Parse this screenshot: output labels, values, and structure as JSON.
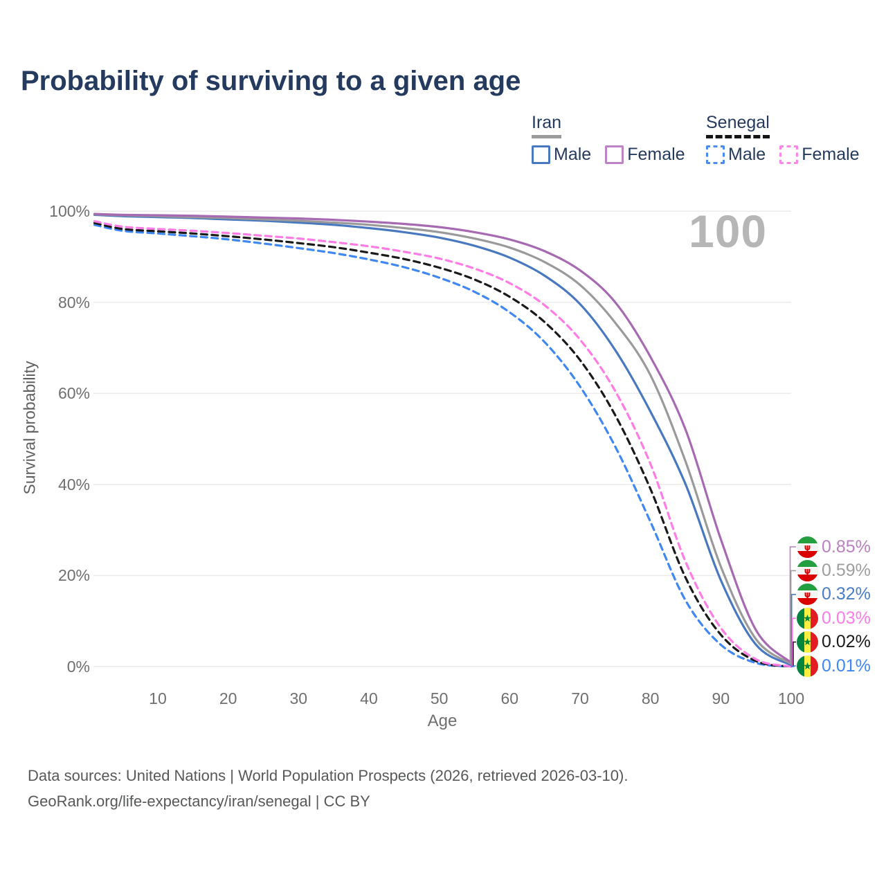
{
  "title": "Probability of surviving to a given age",
  "watermark": "100",
  "legend": {
    "groups": [
      {
        "label": "Iran",
        "line_color": "#9a9a9a",
        "line_style": "solid",
        "items": [
          {
            "label": "Male",
            "color": "#4878c0",
            "style": "solid"
          },
          {
            "label": "Female",
            "color": "#bd84c5",
            "style": "solid"
          }
        ]
      },
      {
        "label": "Senegal",
        "line_color": "#151515",
        "line_style": "dashed",
        "items": [
          {
            "label": "Male",
            "color": "#4a8df0",
            "style": "dashed"
          },
          {
            "label": "Female",
            "color": "#ff85e8",
            "style": "dashed"
          }
        ]
      }
    ]
  },
  "chart_data": {
    "type": "line",
    "title": "Probability of surviving to a given age",
    "xlabel": "Age",
    "ylabel": "Survival probability",
    "x_range": [
      0,
      100
    ],
    "y_range_pct": [
      0,
      100
    ],
    "x_ticks": [
      10,
      20,
      30,
      40,
      50,
      60,
      70,
      80,
      90,
      100
    ],
    "y_ticks": [
      0,
      20,
      40,
      60,
      80,
      100
    ],
    "y_tick_labels": [
      "0%",
      "20%",
      "40%",
      "60%",
      "80%",
      "100%"
    ],
    "grid": "horizontal-only",
    "legend_position": "top-right",
    "x": [
      1,
      5,
      10,
      15,
      20,
      25,
      30,
      35,
      40,
      45,
      50,
      55,
      60,
      65,
      70,
      75,
      80,
      85,
      90,
      95,
      100
    ],
    "series": [
      {
        "id": "iran-female",
        "country": "Iran",
        "sex": "Female",
        "color": "#a669b2",
        "style": "solid",
        "flag": "iran-flag-icon",
        "end_label": "0.85%",
        "label_color": "#bb7fc2",
        "values": [
          99.4,
          99.2,
          99.1,
          99.0,
          98.8,
          98.6,
          98.4,
          98.1,
          97.7,
          97.2,
          96.5,
          95.4,
          93.8,
          91.2,
          87.0,
          80.0,
          68.0,
          52.0,
          28.0,
          8.0,
          0.85
        ]
      },
      {
        "id": "iran-total",
        "country": "Iran",
        "sex": "Both",
        "color": "#9a9a9a",
        "style": "solid",
        "flag": "iran-flag-icon",
        "end_label": "0.59%",
        "label_color": "#9e9e9e",
        "values": [
          99.3,
          99.1,
          98.9,
          98.7,
          98.5,
          98.2,
          97.9,
          97.5,
          97.0,
          96.3,
          95.4,
          94.0,
          92.0,
          88.8,
          83.8,
          75.5,
          64.0,
          45.0,
          22.0,
          6.0,
          0.59
        ]
      },
      {
        "id": "iran-male",
        "country": "Iran",
        "sex": "Male",
        "color": "#4878c0",
        "style": "solid",
        "flag": "iran-flag-icon",
        "end_label": "0.32%",
        "label_color": "#4a7dc9",
        "values": [
          99.2,
          98.9,
          98.7,
          98.5,
          98.2,
          97.9,
          97.5,
          97.0,
          96.3,
          95.4,
          94.2,
          92.4,
          89.8,
          85.8,
          79.6,
          69.5,
          56.0,
          40.0,
          19.0,
          4.8,
          0.32
        ]
      },
      {
        "id": "senegal-female",
        "country": "Senegal",
        "sex": "Female",
        "color": "#ff7ce6",
        "style": "dashed",
        "flag": "senegal-flag-icon",
        "end_label": "0.03%",
        "label_color": "#fb7ce8",
        "values": [
          97.8,
          96.6,
          96.1,
          95.7,
          95.2,
          94.6,
          94.0,
          93.2,
          92.3,
          91.1,
          89.6,
          87.4,
          84.2,
          79.3,
          71.8,
          60.5,
          44.5,
          23.0,
          8.5,
          1.6,
          0.03
        ]
      },
      {
        "id": "senegal-total",
        "country": "Senegal",
        "sex": "Both",
        "color": "#1a1a1a",
        "style": "dashed",
        "flag": "senegal-flag-icon",
        "end_label": "0.02%",
        "label_color": "#1a1a1a",
        "values": [
          97.4,
          96.1,
          95.6,
          95.1,
          94.5,
          93.8,
          93.0,
          92.1,
          90.9,
          89.5,
          87.6,
          85.0,
          81.2,
          75.6,
          67.3,
          55.2,
          39.0,
          19.5,
          7.0,
          1.2,
          0.02
        ]
      },
      {
        "id": "senegal-male",
        "country": "Senegal",
        "sex": "Male",
        "color": "#3f87f2",
        "style": "dashed",
        "flag": "senegal-flag-icon",
        "end_label": "0.01%",
        "label_color": "#3e87f7",
        "values": [
          97.0,
          95.7,
          95.1,
          94.5,
          93.8,
          92.9,
          91.9,
          90.8,
          89.4,
          87.7,
          85.4,
          82.3,
          77.8,
          71.2,
          61.5,
          48.3,
          31.8,
          14.5,
          4.8,
          0.8,
          0.01
        ]
      }
    ]
  },
  "footer": {
    "line1": "Data sources: United Nations | World Population Prospects (2026, retrieved 2026-03-10).",
    "line2": "GeoRank.org/life-expectancy/iran/senegal | CC BY"
  }
}
